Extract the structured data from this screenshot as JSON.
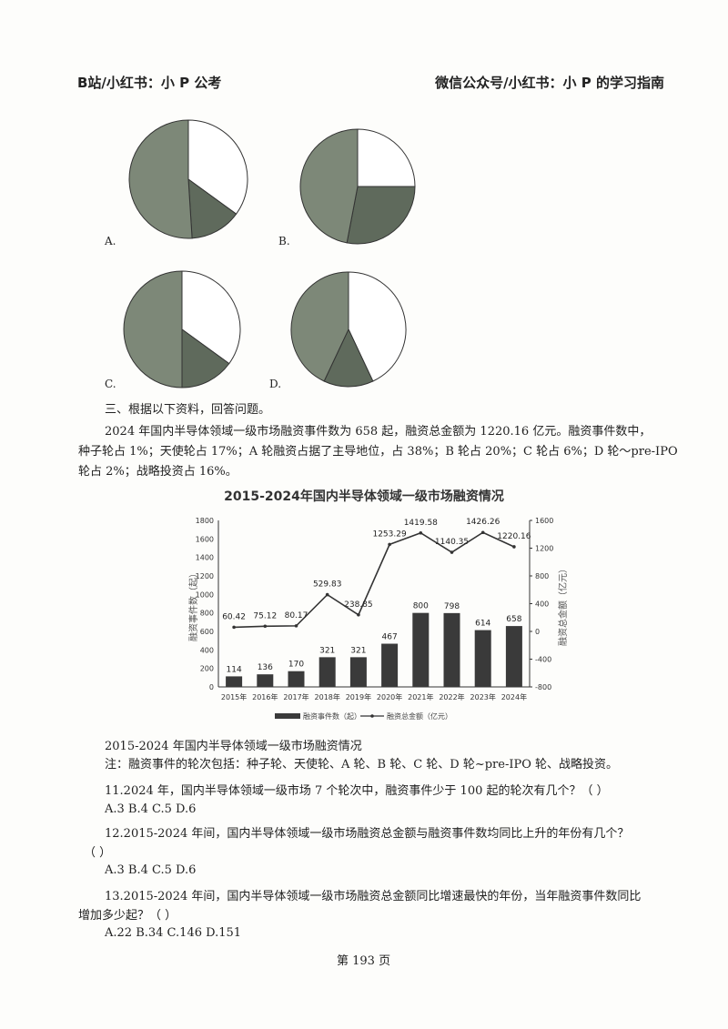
{
  "header": {
    "left": "B站/小红书：小 P 公考",
    "right": "微信公众号/小红书：小 P 的学习指南"
  },
  "pie_options": [
    {
      "label": "A.",
      "slices": [
        35,
        14,
        51
      ]
    },
    {
      "label": "B.",
      "slices": [
        25,
        28,
        47
      ]
    },
    {
      "label": "C.",
      "slices": [
        35,
        15,
        50
      ]
    },
    {
      "label": "D.",
      "slices": [
        43,
        14,
        43
      ]
    }
  ],
  "pie_colors": [
    "#ffffff",
    "#5f6a5c",
    "#7d8878"
  ],
  "section": {
    "title": "三、根据以下资料，回答问题。",
    "para": [
      "2024 年国内半导体领域一级市场融资事件数为 658 起，融资总金额为 1220.16 亿元。融资事件数中，",
      "种子轮占 1%；天使轮占 17%；A 轮融资占据了主导地位，占 38%；B 轮占 20%；C 轮占 6%；D 轮～pre-IPO",
      "轮占 2%；战略投资占 16%。"
    ]
  },
  "chart_data": {
    "type": "bar+line",
    "title": "2015-2024年国内半导体领域一级市场融资情况",
    "categories": [
      "2015年",
      "2016年",
      "2017年",
      "2018年",
      "2019年",
      "2020年",
      "2021年",
      "2022年",
      "2023年",
      "2024年"
    ],
    "series": [
      {
        "name": "融资事件数（起）",
        "type": "bar",
        "axis": "left",
        "values": [
          114,
          136,
          170,
          321,
          321,
          467,
          800,
          798,
          614,
          658
        ],
        "labels": [
          "114",
          "136",
          "170",
          "321",
          "321",
          "467",
          "800",
          "798",
          "614",
          "658"
        ],
        "color": "#3a3a3a"
      },
      {
        "name": "融资总金额（亿元）",
        "type": "line",
        "axis": "right",
        "values": [
          60.42,
          75.12,
          80.17,
          529.83,
          238.85,
          1253.29,
          1419.58,
          1140.35,
          1426.26,
          1220.16
        ],
        "labels": [
          "60.42",
          "75.12",
          "80.17",
          "529.83",
          "238.85",
          "1253.29",
          "1419.58",
          "1140.35",
          "1426.26",
          "1220.16"
        ],
        "color": "#333333"
      }
    ],
    "ylabel": "融资事件数（起）",
    "y2label": "融资总金额（亿元）",
    "ylim": [
      0,
      1800
    ],
    "yticks": [
      "0",
      "200",
      "400",
      "600",
      "800",
      "1000",
      "1200",
      "1400",
      "1600",
      "1800"
    ],
    "y2lim": [
      -800,
      1600
    ],
    "y2ticks": [
      "-800",
      "-400",
      "0",
      "400",
      "800",
      "1200",
      "1600"
    ],
    "grid": false,
    "legend": "bottom"
  },
  "caption": "2015-2024 年国内半导体领域一级市场融资情况",
  "note": "注：融资事件的轮次包括：种子轮、天使轮、A 轮、B 轮、C 轮、D 轮~pre-IPO 轮、战略投资。",
  "questions": [
    {
      "lines": [
        "11.2024 年，国内半导体领域一级市场 7 个轮次中，融资事件少于 100 起的轮次有几个？（  ）"
      ],
      "options": "A.3    B.4    C.5    D.6"
    },
    {
      "lines": [
        "12.2015-2024 年间，国内半导体领域一级市场融资总金额与融资事件数均同比上升的年份有几个？",
        "（      ）"
      ],
      "options": "A.3    B.4    C.5    D.6"
    },
    {
      "lines": [
        "13.2015-2024 年间，国内半导体领域一级市场融资总金额同比增速最快的年份，当年融资事件数同比",
        "增加多少起？（      ）"
      ],
      "options": "A.22    B.34    C.146    D.151"
    }
  ],
  "footer": "第 193 页"
}
